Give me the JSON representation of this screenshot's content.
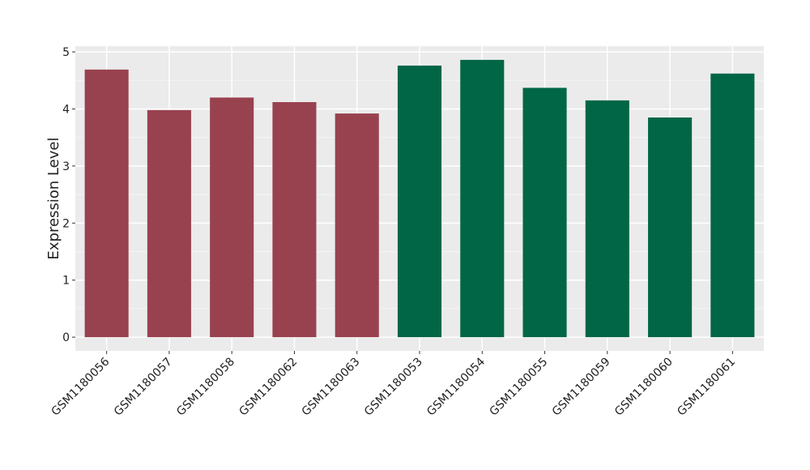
{
  "chart_data": {
    "type": "bar",
    "y_label": "Expression Level",
    "categories": [
      "GSM1180056",
      "GSM1180057",
      "GSM1180058",
      "GSM1180062",
      "GSM1180063",
      "GSM1180053",
      "GSM1180054",
      "GSM1180055",
      "GSM1180059",
      "GSM1180060",
      "GSM1180061"
    ],
    "values": [
      4.69,
      3.98,
      4.2,
      4.12,
      3.92,
      4.76,
      4.86,
      4.37,
      4.15,
      3.85,
      4.62
    ],
    "colors": [
      "#99424f",
      "#99424f",
      "#99424f",
      "#99424f",
      "#99424f",
      "#006646",
      "#006646",
      "#006646",
      "#006646",
      "#006646",
      "#006646"
    ],
    "ylim": [
      -0.24,
      5.1
    ],
    "yticks": [
      0,
      1,
      2,
      3,
      4,
      5
    ],
    "grid": true
  }
}
